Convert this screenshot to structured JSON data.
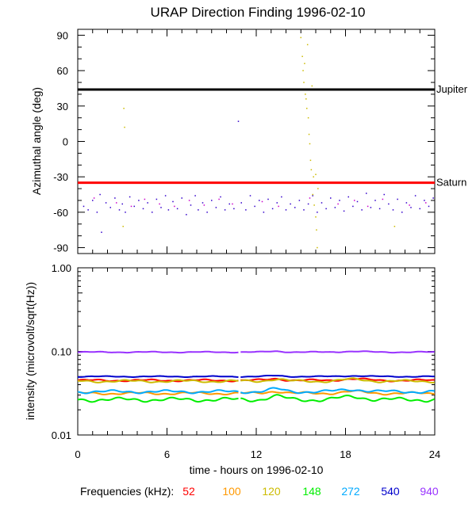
{
  "chart_data": [
    {
      "type": "scatter",
      "title": "URAP Direction Finding  1996-02-10",
      "ylabel": "Azimuthal angle (deg)",
      "xlim": [
        0,
        24
      ],
      "ylim": [
        -95,
        95
      ],
      "yticks": [
        90,
        60,
        30,
        0,
        -30,
        -60,
        -90
      ],
      "reference_lines": [
        {
          "label": "Jupiter",
          "y": 44,
          "color": "#000000"
        },
        {
          "label": "Saturn",
          "y": -35,
          "color": "#ff0000"
        }
      ],
      "series": [
        {
          "color": "#3300cc",
          "points": [
            [
              0.4,
              -55
            ],
            [
              0.7,
              -58
            ],
            [
              1.0,
              -50
            ],
            [
              1.3,
              -60
            ],
            [
              1.5,
              -45
            ],
            [
              1.6,
              -77
            ],
            [
              1.9,
              -52
            ],
            [
              2.2,
              -56
            ],
            [
              2.5,
              -48
            ],
            [
              2.8,
              -58
            ],
            [
              3.0,
              -53
            ],
            [
              3.2,
              -60
            ],
            [
              3.5,
              -47
            ],
            [
              3.8,
              -55
            ],
            [
              4.1,
              -50
            ],
            [
              4.4,
              -57
            ],
            [
              4.7,
              -52
            ],
            [
              5.0,
              -60
            ],
            [
              5.3,
              -49
            ],
            [
              5.6,
              -56
            ],
            [
              5.9,
              -46
            ],
            [
              6.1,
              -58
            ],
            [
              6.4,
              -51
            ],
            [
              6.7,
              -57
            ],
            [
              7.0,
              -48
            ],
            [
              7.3,
              -62
            ],
            [
              7.6,
              -54
            ],
            [
              7.9,
              -46
            ],
            [
              8.1,
              -58
            ],
            [
              8.4,
              -52
            ],
            [
              8.7,
              -60
            ],
            [
              9.0,
              -50
            ],
            [
              9.3,
              -56
            ],
            [
              9.6,
              -47
            ],
            [
              9.9,
              -58
            ],
            [
              10.2,
              -53
            ],
            [
              10.5,
              -57
            ],
            [
              10.8,
              17
            ],
            [
              11.0,
              -52
            ],
            [
              11.3,
              -58
            ],
            [
              11.6,
              -46
            ],
            [
              11.9,
              -55
            ],
            [
              12.2,
              -50
            ],
            [
              12.5,
              -60
            ],
            [
              12.8,
              -49
            ],
            [
              13.1,
              -57
            ],
            [
              13.4,
              -52
            ],
            [
              13.7,
              -47
            ],
            [
              14.0,
              -58
            ],
            [
              14.3,
              -53
            ],
            [
              14.6,
              -56
            ],
            [
              14.9,
              -50
            ],
            [
              15.2,
              -58
            ],
            [
              15.5,
              -53
            ],
            [
              15.8,
              -46
            ],
            [
              16.1,
              -60
            ],
            [
              16.4,
              -52
            ],
            [
              16.7,
              -57
            ],
            [
              17.0,
              -48
            ],
            [
              17.3,
              -56
            ],
            [
              17.6,
              -50
            ],
            [
              17.9,
              -59
            ],
            [
              18.2,
              -47
            ],
            [
              18.5,
              -55
            ],
            [
              18.8,
              -51
            ],
            [
              19.1,
              -58
            ],
            [
              19.4,
              -44
            ],
            [
              19.7,
              -56
            ],
            [
              20.0,
              -50
            ],
            [
              20.3,
              -57
            ],
            [
              20.6,
              -45
            ],
            [
              20.9,
              -53
            ],
            [
              21.2,
              -58
            ],
            [
              21.5,
              -49
            ],
            [
              21.8,
              -60
            ],
            [
              22.1,
              -52
            ],
            [
              22.4,
              -56
            ],
            [
              22.7,
              -46
            ],
            [
              23.0,
              -57
            ],
            [
              23.3,
              -50
            ],
            [
              23.6,
              -55
            ],
            [
              23.9,
              -48
            ]
          ]
        },
        {
          "color": "#cc00cc",
          "points": [
            [
              1.1,
              -48
            ],
            [
              2.6,
              -52
            ],
            [
              3.6,
              -55
            ],
            [
              4.5,
              -49
            ],
            [
              5.5,
              -53
            ],
            [
              6.5,
              -55
            ],
            [
              7.5,
              -50
            ],
            [
              8.5,
              -54
            ],
            [
              9.5,
              -49
            ],
            [
              10.4,
              -53
            ],
            [
              12.4,
              -51
            ],
            [
              13.5,
              -55
            ],
            [
              15.6,
              -48
            ],
            [
              17.5,
              -53
            ],
            [
              18.6,
              -50
            ],
            [
              19.5,
              -55
            ],
            [
              20.5,
              -49
            ],
            [
              22.3,
              -54
            ],
            [
              23.4,
              -52
            ]
          ]
        },
        {
          "color": "#ccbb00",
          "points": [
            [
              3.1,
              28
            ],
            [
              3.15,
              12
            ],
            [
              3.05,
              -72
            ],
            [
              15.0,
              88
            ],
            [
              15.1,
              72
            ],
            [
              15.15,
              60
            ],
            [
              15.2,
              50
            ],
            [
              15.3,
              40
            ],
            [
              15.35,
              36
            ],
            [
              15.4,
              28
            ],
            [
              15.5,
              20
            ],
            [
              15.55,
              6
            ],
            [
              15.6,
              -2
            ],
            [
              15.65,
              -16
            ],
            [
              15.7,
              -24
            ],
            [
              15.8,
              -45
            ],
            [
              15.9,
              -54
            ],
            [
              16.0,
              -64
            ],
            [
              16.05,
              -75
            ],
            [
              16.1,
              -90
            ],
            [
              15.25,
              66
            ],
            [
              15.45,
              82
            ],
            [
              15.75,
              47
            ],
            [
              15.85,
              -30
            ],
            [
              16.0,
              -28
            ],
            [
              16.15,
              -40
            ],
            [
              21.3,
              -72
            ]
          ]
        }
      ]
    },
    {
      "type": "line",
      "ylabel": "intensity (microvolt/sqrt(Hz))",
      "xlabel": "time - hours on 1996-02-10",
      "xlim": [
        0,
        24
      ],
      "xticks": [
        0,
        6,
        12,
        18,
        24
      ],
      "ylim": [
        0.01,
        1.0
      ],
      "yscale": "log",
      "yticks": [
        "1.00",
        "0.10",
        "0.01"
      ],
      "gap": [
        10.85,
        10.95
      ],
      "legend_title": "Frequencies (kHz):",
      "series": [
        {
          "name": "52",
          "color": "#ff0000",
          "level": 0.045,
          "wiggle": 0.04
        },
        {
          "name": "100",
          "color": "#ff9900",
          "level": 0.0315,
          "wiggle": 0.05
        },
        {
          "name": "120",
          "color": "#ccbb00",
          "level": 0.044,
          "wiggle": 0.05
        },
        {
          "name": "148",
          "color": "#00ee00",
          "level": 0.0265,
          "wiggle": 0.08
        },
        {
          "name": "272",
          "color": "#00aaff",
          "level": 0.033,
          "wiggle": 0.06
        },
        {
          "name": "540",
          "color": "#0000cc",
          "level": 0.05,
          "wiggle": 0.02
        },
        {
          "name": "940",
          "color": "#9933ff",
          "level": 0.098,
          "wiggle": 0.02
        }
      ]
    }
  ]
}
